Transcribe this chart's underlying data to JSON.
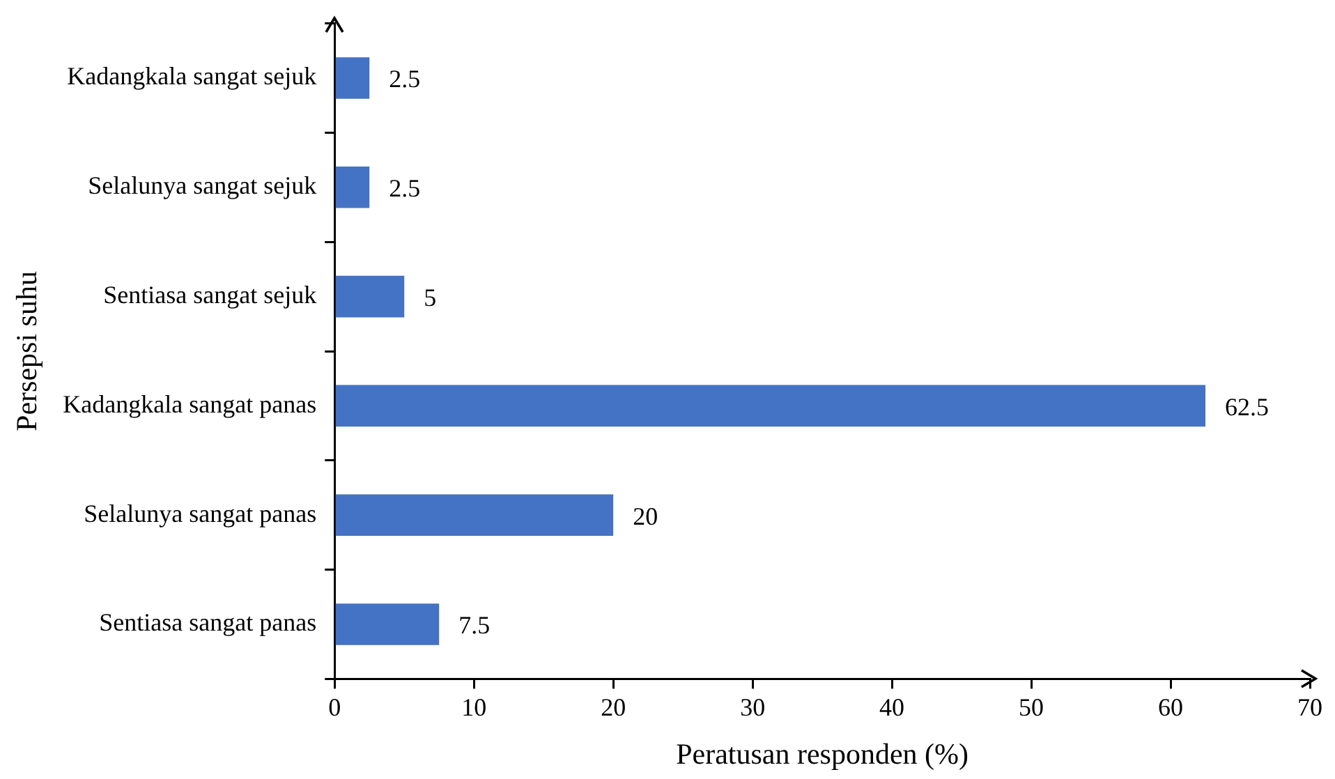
{
  "chart_data": {
    "type": "bar",
    "orientation": "horizontal",
    "xlabel": "Peratusan responden (%)",
    "ylabel": "Persepsi suhu",
    "categories": [
      "Kadangkala sangat sejuk",
      "Selalunya sangat sejuk",
      "Sentiasa sangat sejuk",
      "Kadangkala sangat panas",
      "Selalunya sangat panas",
      "Sentiasa sangat panas"
    ],
    "values": [
      2.5,
      2.5,
      5,
      62.5,
      20,
      7.5
    ],
    "color": "#4472c4",
    "xlim": [
      0,
      70
    ],
    "xticks": [
      0,
      10,
      20,
      30,
      40,
      50,
      60,
      70
    ],
    "grid": false,
    "legend": false,
    "data_labels": true
  }
}
